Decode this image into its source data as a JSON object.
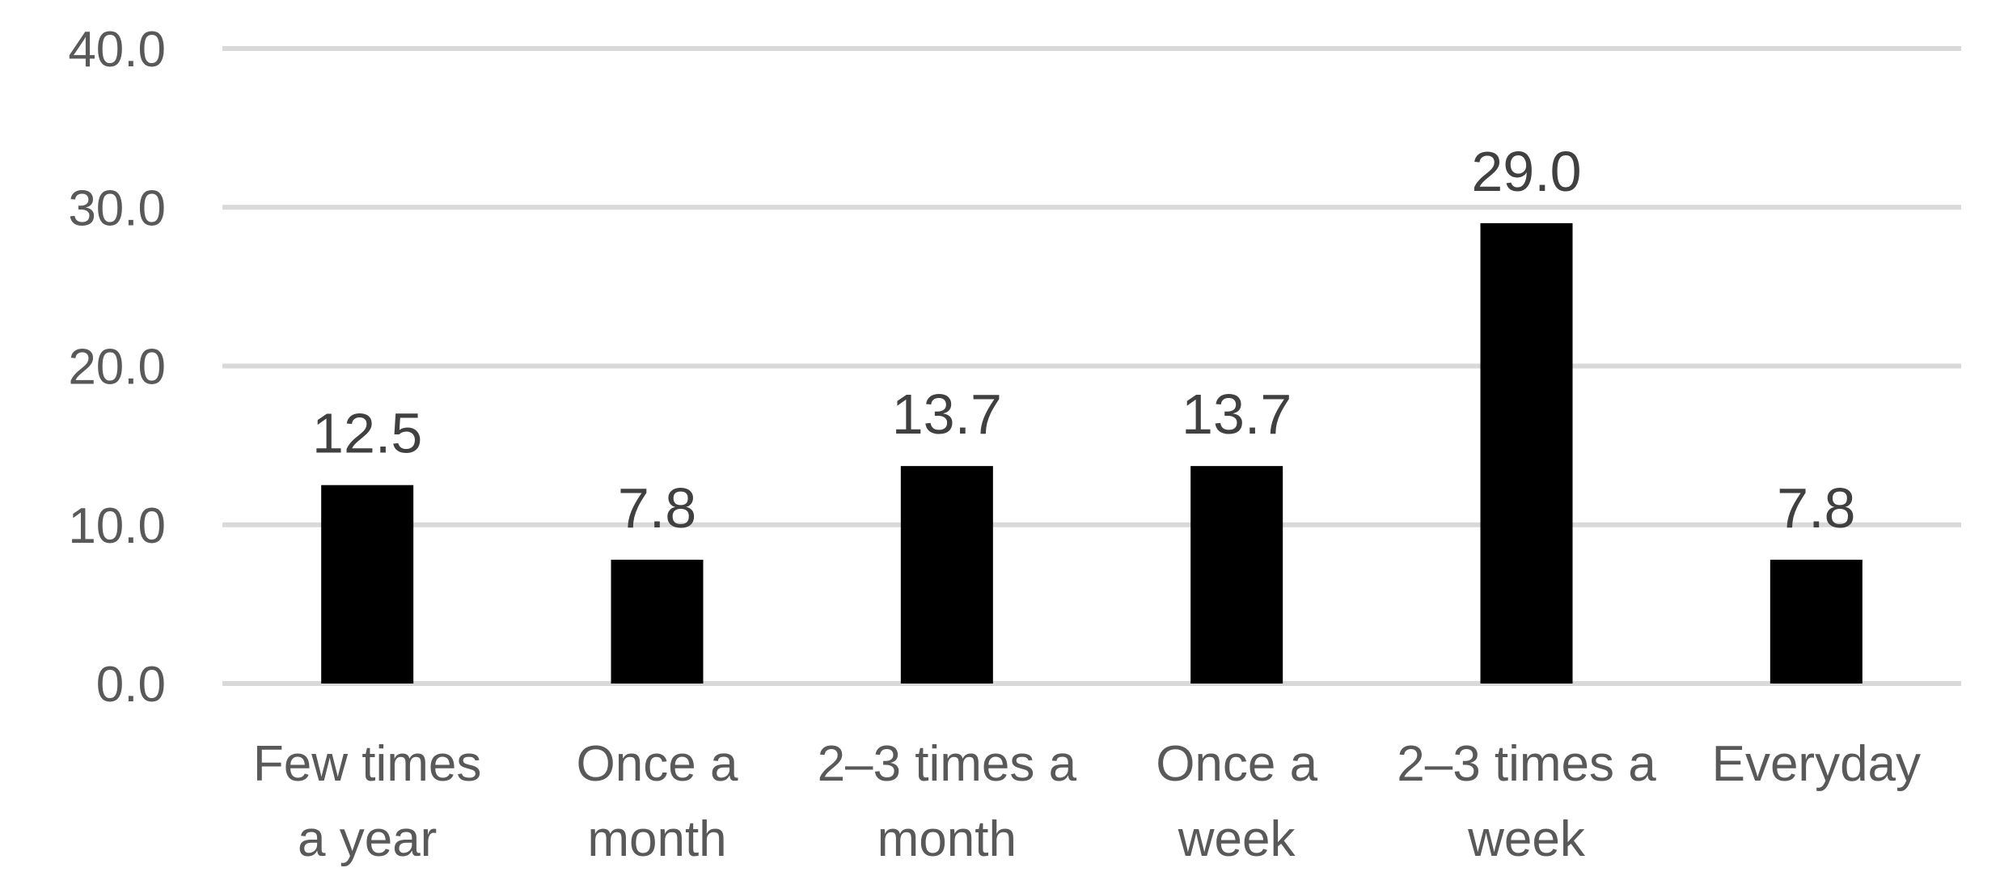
{
  "chart_data": {
    "type": "bar",
    "categories": [
      [
        "Few times",
        "a year"
      ],
      [
        "Once a",
        "month"
      ],
      [
        "2–3 times a",
        "month"
      ],
      [
        "Once a",
        "week"
      ],
      [
        "2–3 times a",
        "week"
      ],
      [
        "Everyday"
      ]
    ],
    "values": [
      12.5,
      7.8,
      13.7,
      13.7,
      29.0,
      7.8
    ],
    "value_labels": [
      "12.5",
      "7.8",
      "13.7",
      "13.7",
      "29.0",
      "7.8"
    ],
    "title": "",
    "xlabel": "",
    "ylabel": "",
    "ylim": [
      0,
      40
    ],
    "yticks": [
      0,
      10,
      20,
      30,
      40
    ],
    "ytick_labels": [
      "0.0",
      "10.0",
      "20.0",
      "30.0",
      "40.0"
    ],
    "grid": true,
    "legend": "none",
    "colors": {
      "bar": "#000000",
      "grid": "#d9d9d9",
      "tick_text": "#595959",
      "data_label_text": "#404040"
    }
  }
}
